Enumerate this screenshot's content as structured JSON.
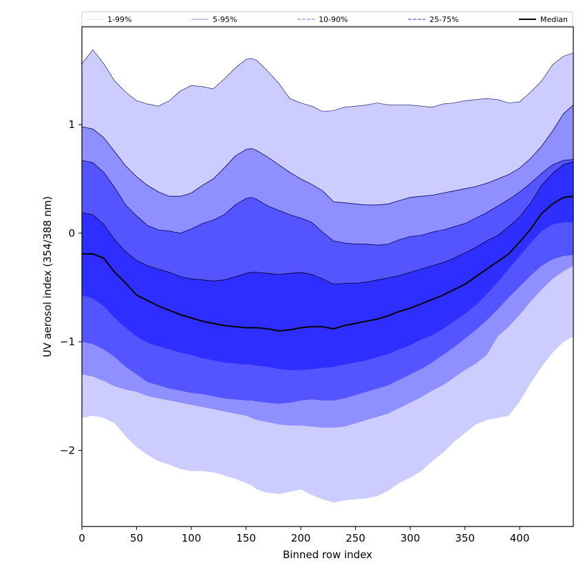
{
  "chart_data": {
    "type": "area",
    "title": "",
    "xlabel": "Binned row index",
    "ylabel": "UV aerosol index (354/388 nm)",
    "xlim": [
      0,
      449
    ],
    "ylim": [
      -2.7,
      1.9
    ],
    "grid": false,
    "legend_placement": "top, above plot, single row",
    "x_ticks": [
      0,
      50,
      100,
      150,
      200,
      250,
      300,
      350,
      400
    ],
    "x_tick_labels": [
      "0",
      "50",
      "100",
      "150",
      "200",
      "250",
      "300",
      "350",
      "400"
    ],
    "y_ticks": [
      -2,
      -1,
      0,
      1
    ],
    "y_tick_labels": [
      "−2",
      "−1",
      "0",
      "1"
    ],
    "x": [
      0,
      10,
      20,
      30,
      40,
      50,
      60,
      70,
      80,
      90,
      100,
      110,
      120,
      130,
      140,
      150,
      155,
      160,
      170,
      180,
      190,
      200,
      210,
      220,
      230,
      240,
      250,
      260,
      270,
      280,
      290,
      300,
      310,
      320,
      330,
      340,
      350,
      360,
      370,
      380,
      390,
      400,
      410,
      420,
      430,
      440,
      449
    ],
    "bands": [
      {
        "name": "1-99%",
        "color": "#ccccff",
        "line_color": "#d8d8f0",
        "upper": [
          1.56,
          1.69,
          1.56,
          1.4,
          1.3,
          1.22,
          1.19,
          1.17,
          1.22,
          1.31,
          1.36,
          1.35,
          1.33,
          1.42,
          1.52,
          1.6,
          1.61,
          1.59,
          1.49,
          1.38,
          1.24,
          1.2,
          1.17,
          1.12,
          1.13,
          1.16,
          1.17,
          1.18,
          1.2,
          1.18,
          1.18,
          1.18,
          1.17,
          1.16,
          1.19,
          1.2,
          1.22,
          1.23,
          1.24,
          1.23,
          1.2,
          1.21,
          1.3,
          1.4,
          1.55,
          1.63,
          1.66
        ],
        "lower": [
          -1.7,
          -1.68,
          -1.7,
          -1.75,
          -1.87,
          -1.97,
          -2.04,
          -2.1,
          -2.13,
          -2.17,
          -2.19,
          -2.19,
          -2.2,
          -2.23,
          -2.26,
          -2.3,
          -2.32,
          -2.36,
          -2.39,
          -2.4,
          -2.38,
          -2.36,
          -2.41,
          -2.45,
          -2.48,
          -2.46,
          -2.45,
          -2.44,
          -2.42,
          -2.37,
          -2.3,
          -2.25,
          -2.19,
          -2.1,
          -2.02,
          -1.92,
          -1.84,
          -1.76,
          -1.72,
          -1.7,
          -1.68,
          -1.55,
          -1.38,
          -1.23,
          -1.1,
          -1.0,
          -0.95
        ]
      },
      {
        "name": "5-95%",
        "color": "#8f8fff",
        "line_color": "#000066",
        "upper": [
          0.98,
          0.96,
          0.88,
          0.75,
          0.62,
          0.52,
          0.44,
          0.38,
          0.34,
          0.34,
          0.37,
          0.44,
          0.5,
          0.6,
          0.71,
          0.77,
          0.78,
          0.76,
          0.7,
          0.63,
          0.56,
          0.5,
          0.45,
          0.39,
          0.29,
          0.28,
          0.27,
          0.26,
          0.26,
          0.27,
          0.3,
          0.33,
          0.34,
          0.35,
          0.37,
          0.39,
          0.41,
          0.43,
          0.46,
          0.5,
          0.54,
          0.6,
          0.69,
          0.8,
          0.94,
          1.1,
          1.18
        ],
        "lower": [
          -1.3,
          -1.32,
          -1.36,
          -1.41,
          -1.44,
          -1.46,
          -1.5,
          -1.52,
          -1.54,
          -1.56,
          -1.58,
          -1.6,
          -1.62,
          -1.64,
          -1.66,
          -1.68,
          -1.7,
          -1.72,
          -1.74,
          -1.76,
          -1.77,
          -1.77,
          -1.78,
          -1.79,
          -1.79,
          -1.78,
          -1.75,
          -1.72,
          -1.69,
          -1.66,
          -1.61,
          -1.56,
          -1.51,
          -1.45,
          -1.4,
          -1.33,
          -1.26,
          -1.2,
          -1.12,
          -0.95,
          -0.86,
          -0.75,
          -0.63,
          -0.52,
          -0.42,
          -0.35,
          -0.3
        ]
      },
      {
        "name": "10-90%",
        "color": "#5555ff",
        "line_color": "#000066",
        "upper": [
          0.67,
          0.65,
          0.56,
          0.42,
          0.26,
          0.16,
          0.07,
          0.03,
          0.02,
          0.0,
          0.04,
          0.09,
          0.12,
          0.17,
          0.26,
          0.32,
          0.33,
          0.31,
          0.25,
          0.21,
          0.17,
          0.14,
          0.1,
          0.01,
          -0.07,
          -0.09,
          -0.1,
          -0.1,
          -0.11,
          -0.1,
          -0.06,
          -0.03,
          -0.02,
          0.01,
          0.03,
          0.06,
          0.09,
          0.14,
          0.19,
          0.25,
          0.31,
          0.38,
          0.46,
          0.55,
          0.63,
          0.67,
          0.68
        ],
        "lower": [
          -1.0,
          -1.02,
          -1.07,
          -1.14,
          -1.23,
          -1.3,
          -1.37,
          -1.4,
          -1.43,
          -1.45,
          -1.47,
          -1.48,
          -1.5,
          -1.52,
          -1.53,
          -1.54,
          -1.54,
          -1.55,
          -1.56,
          -1.57,
          -1.56,
          -1.54,
          -1.53,
          -1.54,
          -1.54,
          -1.52,
          -1.49,
          -1.46,
          -1.43,
          -1.4,
          -1.35,
          -1.3,
          -1.25,
          -1.19,
          -1.12,
          -1.05,
          -0.97,
          -0.89,
          -0.8,
          -0.7,
          -0.59,
          -0.49,
          -0.39,
          -0.3,
          -0.24,
          -0.21,
          -0.2
        ]
      },
      {
        "name": "25-75%",
        "color": "#2e2eff",
        "line_color": "#000033",
        "upper": [
          0.19,
          0.17,
          0.08,
          -0.06,
          -0.17,
          -0.25,
          -0.3,
          -0.33,
          -0.36,
          -0.4,
          -0.42,
          -0.43,
          -0.44,
          -0.43,
          -0.4,
          -0.37,
          -0.36,
          -0.36,
          -0.37,
          -0.38,
          -0.37,
          -0.36,
          -0.38,
          -0.42,
          -0.47,
          -0.46,
          -0.46,
          -0.45,
          -0.43,
          -0.41,
          -0.39,
          -0.36,
          -0.33,
          -0.3,
          -0.27,
          -0.23,
          -0.18,
          -0.13,
          -0.07,
          -0.02,
          0.06,
          0.15,
          0.28,
          0.44,
          0.55,
          0.63,
          0.66
        ],
        "lower": [
          -0.57,
          -0.6,
          -0.67,
          -0.78,
          -0.87,
          -0.95,
          -1.01,
          -1.04,
          -1.07,
          -1.1,
          -1.12,
          -1.15,
          -1.17,
          -1.19,
          -1.2,
          -1.21,
          -1.21,
          -1.22,
          -1.23,
          -1.25,
          -1.26,
          -1.26,
          -1.25,
          -1.24,
          -1.23,
          -1.21,
          -1.19,
          -1.17,
          -1.14,
          -1.11,
          -1.07,
          -1.03,
          -0.98,
          -0.94,
          -0.88,
          -0.81,
          -0.74,
          -0.66,
          -0.56,
          -0.45,
          -0.33,
          -0.21,
          -0.09,
          0.02,
          0.08,
          0.1,
          0.1
        ]
      }
    ],
    "median": {
      "name": "Median",
      "color": "#000000",
      "values": [
        -0.19,
        -0.19,
        -0.23,
        -0.36,
        -0.46,
        -0.57,
        -0.62,
        -0.67,
        -0.71,
        -0.75,
        -0.78,
        -0.81,
        -0.83,
        -0.85,
        -0.86,
        -0.87,
        -0.87,
        -0.87,
        -0.88,
        -0.9,
        -0.89,
        -0.87,
        -0.86,
        -0.86,
        -0.88,
        -0.85,
        -0.83,
        -0.81,
        -0.79,
        -0.76,
        -0.72,
        -0.69,
        -0.65,
        -0.61,
        -0.57,
        -0.52,
        -0.47,
        -0.4,
        -0.33,
        -0.26,
        -0.19,
        -0.08,
        0.04,
        0.18,
        0.27,
        0.33,
        0.34
      ]
    },
    "legend": [
      {
        "label": "1-99%",
        "style": "solid",
        "color": "#e0e0f5"
      },
      {
        "label": "5-95%",
        "style": "solid",
        "color": "#a0a0cc"
      },
      {
        "label": "10-90%",
        "style": "dashed",
        "color": "#8888ff"
      },
      {
        "label": "25-75%",
        "style": "dashed",
        "color": "#5a5aee"
      },
      {
        "label": "Median",
        "style": "solid",
        "color": "#000000"
      }
    ]
  }
}
